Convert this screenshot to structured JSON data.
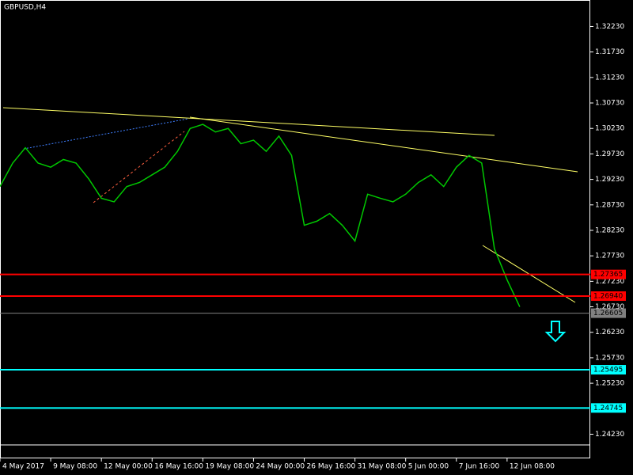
{
  "chart_data": {
    "type": "line",
    "title": "GBPUSD,H4",
    "x": [
      0,
      2,
      4,
      6,
      8,
      10,
      12,
      14,
      16,
      18,
      20,
      22,
      24,
      26,
      28,
      30,
      32,
      34,
      36,
      38,
      40,
      42,
      44,
      46,
      48,
      50,
      52,
      54,
      56,
      58,
      60,
      62,
      64,
      66,
      68,
      70,
      72,
      74,
      76,
      78,
      80,
      82
    ],
    "series": [
      {
        "name": "GBPUSD",
        "color": "#00c800",
        "values": [
          1.2909,
          1.2955,
          1.2985,
          1.2955,
          1.2947,
          1.2962,
          1.2955,
          1.2924,
          1.2886,
          1.2879,
          1.2909,
          1.2917,
          1.2932,
          1.2947,
          1.2978,
          1.3023,
          1.3031,
          1.3016,
          1.3023,
          1.2993,
          1.3,
          1.2978,
          1.3008,
          1.297,
          1.2833,
          1.2841,
          1.2856,
          1.2833,
          1.2802,
          1.2894,
          1.2886,
          1.2879,
          1.2894,
          1.2917,
          1.2932,
          1.2909,
          1.2947,
          1.297,
          1.2955,
          1.2787,
          1.2726,
          1.2673
        ]
      }
    ],
    "xlim": [
      0,
      93
    ],
    "xticks": [
      {
        "value": 0,
        "label": "4 May 2017"
      },
      {
        "value": 8,
        "label": "9 May 08:00"
      },
      {
        "value": 16,
        "label": "12 May 00:00"
      },
      {
        "value": 24,
        "label": "16 May 16:00"
      },
      {
        "value": 32,
        "label": "19 May 08:00"
      },
      {
        "value": 40,
        "label": "24 May 00:00"
      },
      {
        "value": 48,
        "label": "26 May 16:00"
      },
      {
        "value": 56,
        "label": "31 May 08:00"
      },
      {
        "value": 64,
        "label": "5 Jun 00:00"
      },
      {
        "value": 72,
        "label": "7 Jun 16:00"
      },
      {
        "value": 80,
        "label": "12 Jun 08:00"
      }
    ],
    "ylim": [
      1.2402,
      1.3275
    ],
    "yticks": [
      {
        "value": 1.3223,
        "label": "1.32230"
      },
      {
        "value": 1.3173,
        "label": "1.31730"
      },
      {
        "value": 1.3123,
        "label": "1.31230"
      },
      {
        "value": 1.3073,
        "label": "1.30730"
      },
      {
        "value": 1.3023,
        "label": "1.30230"
      },
      {
        "value": 1.2973,
        "label": "1.29730"
      },
      {
        "value": 1.2923,
        "label": "1.29230"
      },
      {
        "value": 1.2873,
        "label": "1.28730"
      },
      {
        "value": 1.2823,
        "label": "1.28230"
      },
      {
        "value": 1.2773,
        "label": "1.27730"
      },
      {
        "value": 1.2723,
        "label": "1.27230"
      },
      {
        "value": 1.2673,
        "label": "1.26730"
      },
      {
        "value": 1.2623,
        "label": "1.26230"
      },
      {
        "value": 1.2573,
        "label": "1.25730"
      },
      {
        "value": 1.2523,
        "label": "1.25230"
      },
      {
        "value": 1.2423,
        "label": "1.24230"
      }
    ],
    "hlines": [
      {
        "value": 1.27365,
        "label": "1.27365",
        "color": "#ff0000"
      },
      {
        "value": 1.2694,
        "label": "1.26940",
        "color": "#ff0000"
      },
      {
        "value": 1.26605,
        "label": "1.26605",
        "color": "#808080"
      },
      {
        "value": 1.25495,
        "label": "1.25495",
        "color": "#00ffff"
      },
      {
        "value": 1.24745,
        "label": "1.24745",
        "color": "#00ffff"
      }
    ]
  }
}
